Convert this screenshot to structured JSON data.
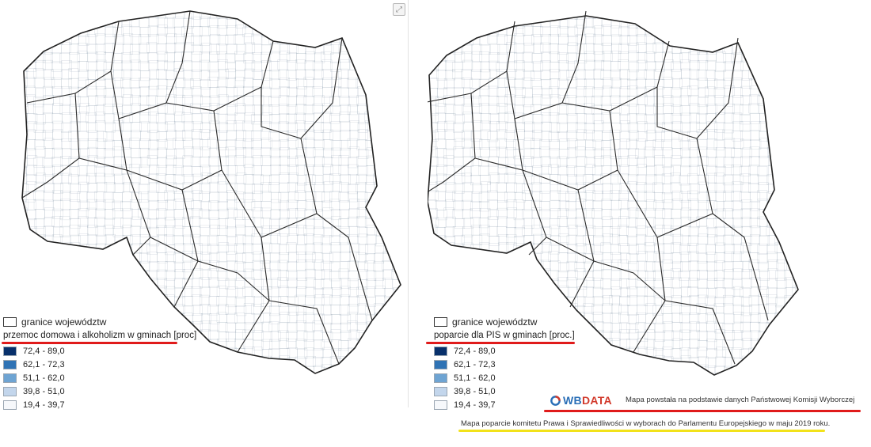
{
  "legend_colors": [
    "#08306b",
    "#2f73b5",
    "#6ea4d3",
    "#c3d6ec",
    "#f6f8fb"
  ],
  "legend_items": [
    {
      "label": "72,4 - 89,0",
      "color": "#08306b"
    },
    {
      "label": "62,1 - 72,3",
      "color": "#2f73b5"
    },
    {
      "label": "51,1 - 62,0",
      "color": "#6ea4d3"
    },
    {
      "label": "39,8 - 51,0",
      "color": "#c3d6ec"
    },
    {
      "label": "19,4 - 39,7",
      "color": "#f6f8fb"
    }
  ],
  "left_map": {
    "border_label": "granice województw",
    "legend_title": "przemoc domowa i alkoholizm w gminach [proc]",
    "expand_icon": "expand-icon"
  },
  "right_map": {
    "border_label": "granice województw",
    "legend_title": "poparcie dla PIS w gminach [proc.]"
  },
  "branding": {
    "logo_icon": "wbdata-logo-icon",
    "logo_text_1": "WB",
    "logo_text_2": "DATA",
    "source_note": "Mapa powstała na podstawie danych Państwowej Komisji Wyborczej"
  },
  "caption": "Mapa poparcie komitetu Prawa i Sprawiedliwości w wyborach do Parlamentu Europejskiego w maju 2019 roku.",
  "highlight_colors": {
    "red": "#e01b1b",
    "yellow": "#f2e21a"
  }
}
